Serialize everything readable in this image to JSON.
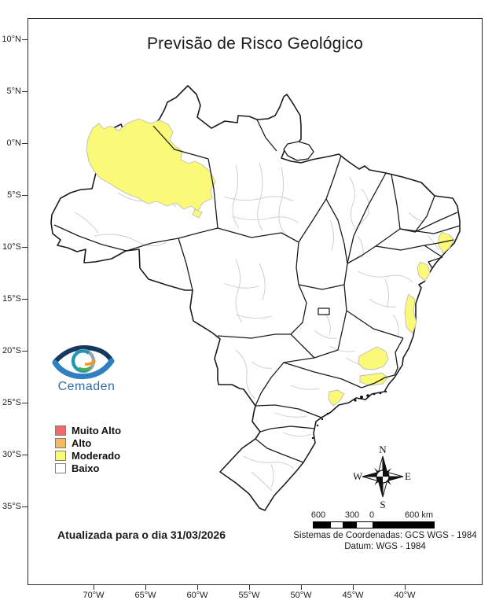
{
  "title": "Previsão de Risco Geológico",
  "logo": {
    "wordmark": "Cemaden"
  },
  "legend": {
    "items": [
      {
        "label": "Muito Alto",
        "color": "#f2686b"
      },
      {
        "label": "Alto",
        "color": "#f2ba62"
      },
      {
        "label": "Moderado",
        "color": "#fbfb72"
      },
      {
        "label": "Baixo",
        "color": "#ffffff"
      }
    ]
  },
  "update_note": "Atualizada para o dia 31/03/2026",
  "axes": {
    "latitude_tick_labels": [
      "10°N",
      "5°N",
      "0°N",
      "5°S",
      "10°S",
      "15°S",
      "20°S",
      "25°S",
      "30°S",
      "35°S"
    ],
    "longitude_tick_labels": [
      "70°W",
      "65°W",
      "60°W",
      "55°W",
      "50°W",
      "45°W",
      "40°W"
    ]
  },
  "compass": {
    "n": "N",
    "s": "S",
    "e": "E",
    "w": "W"
  },
  "scale_bar": {
    "labels": [
      "600",
      "300",
      "0",
      "600 km"
    ]
  },
  "coordinate_system": {
    "line1": "Sistemas de Coordenadas: GCS WGS - 1984",
    "line2": "Datum: WGS - 1984"
  },
  "map": {
    "country": "Brasil",
    "highlight_level": "Moderado",
    "highlight_color": "#fafa78",
    "highlighted_areas": [
      "noroeste-do-amazonas",
      "litoral-pernambuco-alagoas",
      "litoral-sergipe",
      "litoral-sul-bahia",
      "leste-minas-espirito-santo",
      "litoral-rio-de-janeiro",
      "litoral-sao-paulo"
    ]
  }
}
